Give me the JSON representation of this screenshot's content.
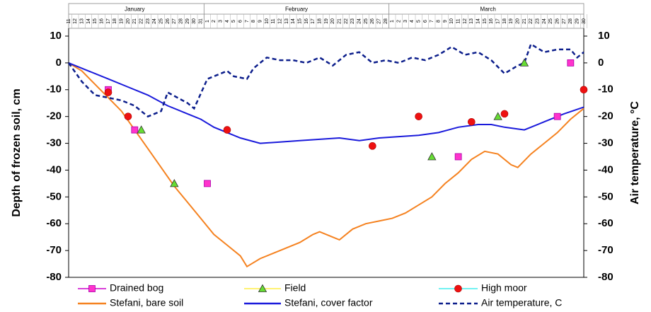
{
  "chart_data": {
    "type": "combo",
    "ylabel": "Depth of frozen soil, cm",
    "y2label": "Air temperature, °C",
    "months": [
      "January",
      "February",
      "March"
    ],
    "xlim": [
      11,
      89
    ],
    "xticks": [
      11,
      12,
      13,
      14,
      15,
      16,
      17,
      18,
      19,
      20,
      21,
      22,
      23,
      24,
      25,
      26,
      27,
      28,
      29,
      30,
      31,
      {
        "value": 32,
        "label": "1"
      },
      {
        "value": 33,
        "label": "2"
      },
      {
        "value": 34,
        "label": "3"
      },
      {
        "value": 35,
        "label": "4"
      },
      {
        "value": 36,
        "label": "5"
      },
      {
        "value": 37,
        "label": "6"
      },
      {
        "value": 38,
        "label": "7"
      },
      {
        "value": 39,
        "label": "8"
      },
      {
        "value": 40,
        "label": "9"
      },
      {
        "value": 41,
        "label": "10"
      },
      {
        "value": 42,
        "label": "11"
      },
      {
        "value": 43,
        "label": "12"
      },
      {
        "value": 44,
        "label": "13"
      },
      {
        "value": 45,
        "label": "14"
      },
      {
        "value": 46,
        "label": "15"
      },
      {
        "value": 47,
        "label": "16"
      },
      {
        "value": 48,
        "label": "17"
      },
      {
        "value": 49,
        "label": "18"
      },
      {
        "value": 50,
        "label": "19"
      },
      {
        "value": 51,
        "label": "20"
      },
      {
        "value": 52,
        "label": "21"
      },
      {
        "value": 53,
        "label": "22"
      },
      {
        "value": 54,
        "label": "23"
      },
      {
        "value": 55,
        "label": "24"
      },
      {
        "value": 56,
        "label": "25"
      },
      {
        "value": 57,
        "label": "26"
      },
      {
        "value": 58,
        "label": "27"
      },
      {
        "value": 59,
        "label": "28"
      },
      {
        "value": 60,
        "label": "1"
      },
      {
        "value": 61,
        "label": "2"
      },
      {
        "value": 62,
        "label": "3"
      },
      {
        "value": 63,
        "label": "4"
      },
      {
        "value": 64,
        "label": "5"
      },
      {
        "value": 65,
        "label": "6"
      },
      {
        "value": 66,
        "label": "7"
      },
      {
        "value": 67,
        "label": "8"
      },
      {
        "value": 68,
        "label": "9"
      },
      {
        "value": 69,
        "label": "10"
      },
      {
        "value": 70,
        "label": "11"
      },
      {
        "value": 71,
        "label": "12"
      },
      {
        "value": 72,
        "label": "13"
      },
      {
        "value": 73,
        "label": "14"
      },
      {
        "value": 74,
        "label": "15"
      },
      {
        "value": 75,
        "label": "16"
      },
      {
        "value": 76,
        "label": "17"
      },
      {
        "value": 77,
        "label": "18"
      },
      {
        "value": 78,
        "label": "19"
      },
      {
        "value": 79,
        "label": "20"
      },
      {
        "value": 80,
        "label": "21"
      },
      {
        "value": 81,
        "label": "22"
      },
      {
        "value": 82,
        "label": "23"
      },
      {
        "value": 83,
        "label": "24"
      },
      {
        "value": 84,
        "label": "25"
      },
      {
        "value": 85,
        "label": "26"
      },
      {
        "value": 86,
        "label": "27"
      },
      {
        "value": 87,
        "label": "28"
      },
      {
        "value": 88,
        "label": "29"
      },
      {
        "value": 89,
        "label": "30"
      }
    ],
    "ylim": [
      -80,
      10
    ],
    "yticks": [
      10,
      0,
      -10,
      -20,
      -30,
      -40,
      -50,
      -60,
      -70,
      -80
    ],
    "y2lim": [
      -80,
      10
    ],
    "y2ticks": [
      10,
      0,
      -10,
      -20,
      -30,
      -40,
      -50,
      -60,
      -70,
      -80
    ],
    "series": [
      {
        "name": "Drained bog",
        "kind": "scatter",
        "marker": "square",
        "color": "#ff33cc",
        "line_color": "#cc00cc",
        "x": [
          17,
          21,
          32,
          70,
          85,
          87
        ],
        "values": [
          -10,
          -25,
          -45,
          -35,
          -20,
          0
        ]
      },
      {
        "name": "Field",
        "kind": "scatter",
        "marker": "triangle",
        "color": "#66dd33",
        "line_color": "#ffee44",
        "x": [
          22,
          27,
          66,
          76,
          80
        ],
        "values": [
          -25,
          -45,
          -35,
          -20,
          0
        ]
      },
      {
        "name": "High moor",
        "kind": "scatter",
        "marker": "circle",
        "color": "#ee1111",
        "line_color": "#44eeee",
        "x": [
          17,
          20,
          35,
          57,
          64,
          72,
          77,
          89
        ],
        "values": [
          -11,
          -20,
          -25,
          -31,
          -20,
          -22,
          -19,
          -10
        ]
      },
      {
        "name": "Stefani, bare soil",
        "kind": "line",
        "color": "#f58220",
        "dash": false,
        "x": [
          11,
          13,
          15,
          17,
          19,
          21,
          23,
          25,
          27,
          29,
          31,
          33,
          35,
          37,
          38,
          40,
          42,
          44,
          46,
          48,
          49,
          51,
          52,
          54,
          56,
          58,
          60,
          62,
          64,
          66,
          68,
          70,
          72,
          74,
          76,
          78,
          79,
          81,
          83,
          85,
          87,
          89
        ],
        "values": [
          0,
          -3,
          -8,
          -13,
          -18,
          -25,
          -32,
          -39,
          -46,
          -52,
          -58,
          -64,
          -68,
          -72,
          -76,
          -73,
          -71,
          -69,
          -67,
          -64,
          -63,
          -65,
          -66,
          -62,
          -60,
          -59,
          -58,
          -56,
          -53,
          -50,
          -45,
          -41,
          -36,
          -33,
          -34,
          -38,
          -39,
          -34,
          -30,
          -26,
          -21,
          -17
        ]
      },
      {
        "name": "Stefani, cover factor",
        "kind": "line",
        "color": "#1a1adb",
        "dash": false,
        "x": [
          11,
          14,
          17,
          20,
          23,
          26,
          29,
          31,
          33,
          35,
          37,
          40,
          43,
          46,
          49,
          52,
          55,
          58,
          61,
          64,
          67,
          70,
          73,
          75,
          77,
          80,
          83,
          86,
          89
        ],
        "values": [
          0,
          -3,
          -6,
          -9,
          -12,
          -16,
          -19,
          -21,
          -24,
          -26,
          -28,
          -30,
          -29.5,
          -29,
          -28.5,
          -28,
          -29,
          -28,
          -27.5,
          -27,
          -26,
          -24,
          -23,
          -23,
          -24,
          -25,
          -22,
          -19,
          -16.5
        ]
      },
      {
        "name": "Air temperature, C",
        "kind": "line",
        "axis": "y2",
        "color": "#0d1f8c",
        "dash": true,
        "x": [
          11,
          13,
          15,
          17,
          19,
          21,
          23,
          25,
          26,
          29,
          30,
          32,
          35,
          36,
          38,
          39,
          41,
          43,
          45,
          47,
          49,
          51,
          53,
          55,
          57,
          59,
          61,
          63,
          65,
          67,
          69,
          71,
          73,
          75,
          77,
          79,
          80,
          81,
          83,
          85,
          87,
          88,
          89
        ],
        "values": [
          0,
          -7,
          -12,
          -13,
          -14,
          -16,
          -20,
          -18,
          -11,
          -15,
          -17,
          -6,
          -3,
          -5,
          -6,
          -2,
          2,
          1,
          1,
          0,
          2,
          -1,
          3,
          4,
          0,
          1,
          0,
          2,
          1,
          3,
          6,
          3,
          4,
          1,
          -4,
          -1,
          0,
          7,
          4,
          5,
          5,
          2,
          4
        ]
      }
    ]
  }
}
